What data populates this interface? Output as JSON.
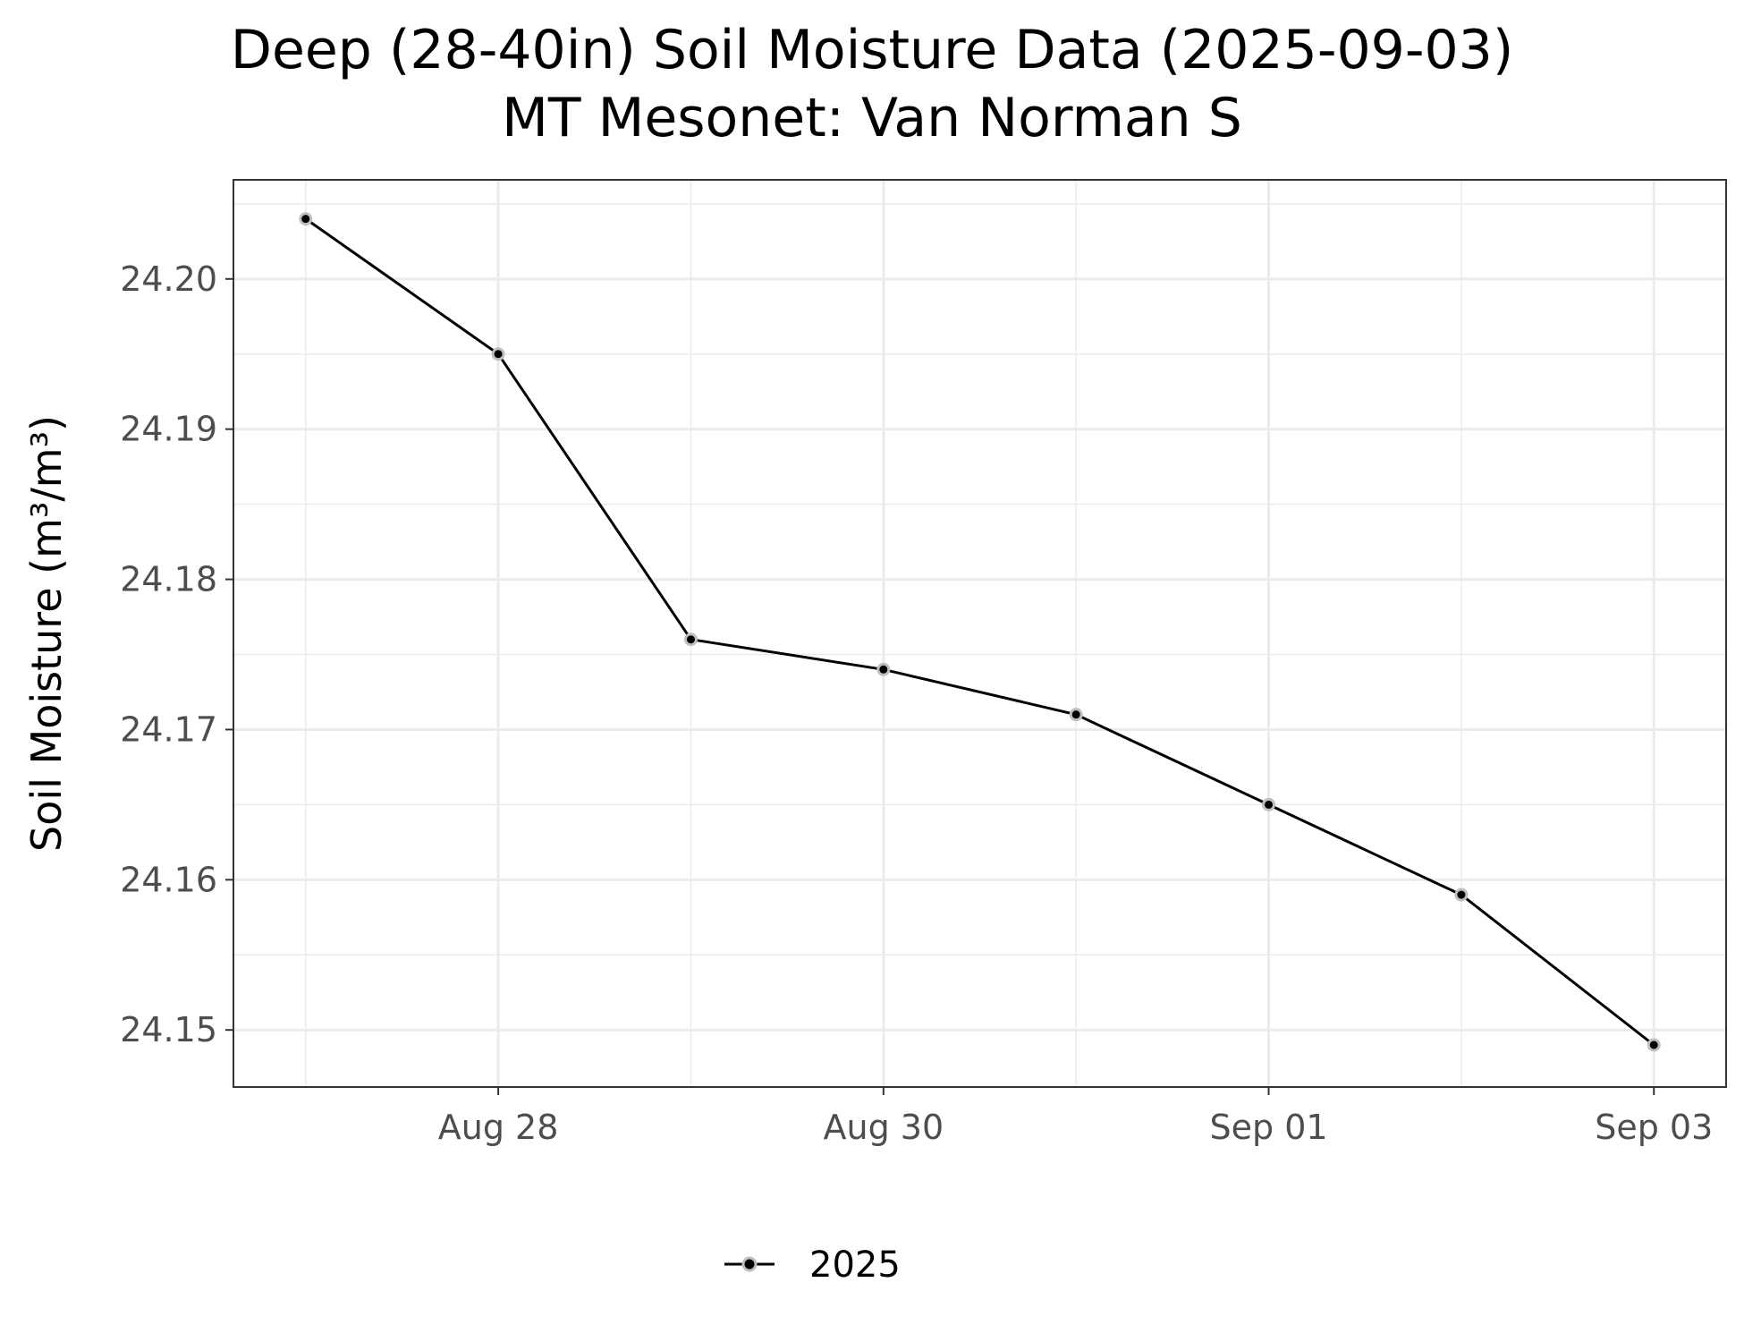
{
  "chart_data": {
    "type": "line",
    "title": "Deep (28-40in) Soil Moisture Data (2025-09-03)",
    "subtitle": "MT Mesonet: Van Norman S",
    "xlabel": "",
    "ylabel": "Soil Moisture (m³/m³)",
    "x": [
      "2025-08-27",
      "2025-08-28",
      "2025-08-29",
      "2025-08-30",
      "2025-08-31",
      "2025-09-01",
      "2025-09-02",
      "2025-09-03"
    ],
    "series": [
      {
        "name": "2025",
        "values": [
          24.204,
          24.195,
          24.176,
          24.174,
          24.171,
          24.165,
          24.159,
          24.149
        ],
        "color": "#000000"
      }
    ],
    "ylim": [
      24.1462,
      24.2066
    ],
    "xlim": [
      "2025-08-26 15:00",
      "2025-09-03 09:00"
    ],
    "y_ticks": [
      "24.15",
      "24.16",
      "24.17",
      "24.18",
      "24.19",
      "24.20"
    ],
    "x_ticks": [
      {
        "date": "2025-08-28",
        "label": "Aug 28"
      },
      {
        "date": "2025-08-30",
        "label": "Aug 30"
      },
      {
        "date": "2025-09-01",
        "label": "Sep 01"
      },
      {
        "date": "2025-09-03",
        "label": "Sep 03"
      }
    ],
    "grid": true,
    "legend_position": "bottom",
    "marker_color": "#bfbfbf"
  }
}
